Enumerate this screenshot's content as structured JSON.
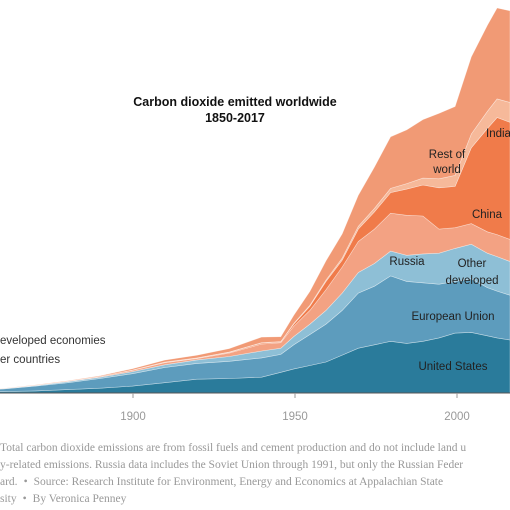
{
  "chart_data": {
    "type": "area",
    "stacked": true,
    "title": "Carbon dioxide emitted worldwide",
    "subtitle": "1850-2017",
    "xlabel": "",
    "ylabel": "",
    "xlim": [
      1850,
      2017
    ],
    "x_ticks": [
      "1900",
      "1950",
      "2000"
    ],
    "grid": false,
    "colors": {
      "united_states": "#2a7b9b",
      "european_union": "#5d9cbd",
      "other_developed": "#8ebfd6",
      "russia": "#f3a283",
      "china": "#f07b4a",
      "india": "#f6b99a",
      "rest_of_world": "#f19a75"
    },
    "x": [
      1850,
      1860,
      1870,
      1880,
      1890,
      1900,
      1910,
      1920,
      1930,
      1940,
      1946,
      1950,
      1955,
      1960,
      1965,
      1970,
      1975,
      1980,
      1985,
      1990,
      1995,
      2000,
      2005,
      2010,
      2013,
      2017
    ],
    "series": [
      {
        "key": "united_states",
        "name": "United States",
        "values": [
          0.1,
          0.2,
          0.3,
          0.5,
          0.7,
          1.0,
          1.5,
          2.0,
          2.1,
          2.3,
          3.0,
          3.5,
          4.0,
          4.5,
          5.5,
          6.5,
          7.0,
          7.5,
          7.2,
          7.5,
          8.0,
          8.7,
          8.8,
          8.3,
          8.0,
          7.7
        ]
      },
      {
        "key": "european_union",
        "name": "European Union",
        "values": [
          0.2,
          0.4,
          0.7,
          1.0,
          1.4,
          1.8,
          2.2,
          2.3,
          2.5,
          2.8,
          2.6,
          3.5,
          4.5,
          5.5,
          6.5,
          8.0,
          8.5,
          9.5,
          9.0,
          8.5,
          7.8,
          7.5,
          7.8,
          7.0,
          6.8,
          6.5
        ]
      },
      {
        "key": "other_developed",
        "name": "Other developed",
        "values": [
          0.0,
          0.05,
          0.1,
          0.15,
          0.2,
          0.3,
          0.4,
          0.5,
          0.7,
          1.0,
          0.9,
          1.2,
          1.5,
          2.0,
          2.5,
          3.0,
          3.3,
          3.6,
          3.8,
          4.2,
          4.5,
          4.8,
          5.0,
          5.0,
          5.0,
          4.9
        ]
      },
      {
        "key": "russia",
        "name": "Russia",
        "values": [
          0.0,
          0.0,
          0.02,
          0.05,
          0.1,
          0.2,
          0.3,
          0.2,
          0.5,
          1.0,
          0.8,
          1.5,
          2.0,
          3.0,
          3.8,
          4.5,
          5.0,
          5.5,
          5.8,
          5.5,
          3.5,
          3.0,
          3.0,
          3.1,
          3.2,
          3.2
        ]
      },
      {
        "key": "china",
        "name": "China",
        "values": [
          0.0,
          0.0,
          0.0,
          0.0,
          0.0,
          0.02,
          0.05,
          0.05,
          0.1,
          0.15,
          0.1,
          0.3,
          0.6,
          1.2,
          1.0,
          1.8,
          2.5,
          3.0,
          3.8,
          4.5,
          6.0,
          6.0,
          11.0,
          15.0,
          17.0,
          17.0
        ]
      },
      {
        "key": "india",
        "name": "India",
        "values": [
          0.0,
          0.0,
          0.0,
          0.0,
          0.0,
          0.01,
          0.03,
          0.04,
          0.05,
          0.06,
          0.07,
          0.1,
          0.15,
          0.2,
          0.3,
          0.4,
          0.5,
          0.6,
          0.8,
          1.0,
          1.3,
          1.6,
          2.0,
          2.5,
          2.7,
          2.9
        ]
      },
      {
        "key": "rest_of_world",
        "name": "Rest of world",
        "values": [
          0.0,
          0.02,
          0.05,
          0.08,
          0.1,
          0.2,
          0.3,
          0.4,
          0.5,
          0.8,
          0.7,
          1.2,
          2.0,
          2.8,
          3.5,
          4.5,
          6.0,
          7.5,
          7.8,
          8.5,
          9.5,
          10.0,
          11.2,
          12.5,
          13.2,
          13.3
        ]
      }
    ],
    "labels": {
      "rest_of_world_line1": "Rest of",
      "rest_of_world_line2": "world",
      "india": "India",
      "china": "China",
      "russia": "Russia",
      "other_developed_line1": "Other",
      "other_developed_line2": "developed",
      "european_union": "European Union",
      "united_states": "United States"
    },
    "legend": {
      "developed": "eveloped economies",
      "other": "er countries"
    }
  },
  "footnote": {
    "line1": "Total carbon dioxide emissions are from fossil fuels and cement production and do not include land u",
    "line2": "y-related emissions. Russia data includes the Soviet Union through 1991, but only the Russian Feder",
    "line3_a": "ard.",
    "line3_b": "Source: Research Institute for Environment, Energy and Economics at Appalachian State",
    "line4_a": "sity",
    "line4_b": "By Veronica Penney",
    "separator": "•"
  }
}
